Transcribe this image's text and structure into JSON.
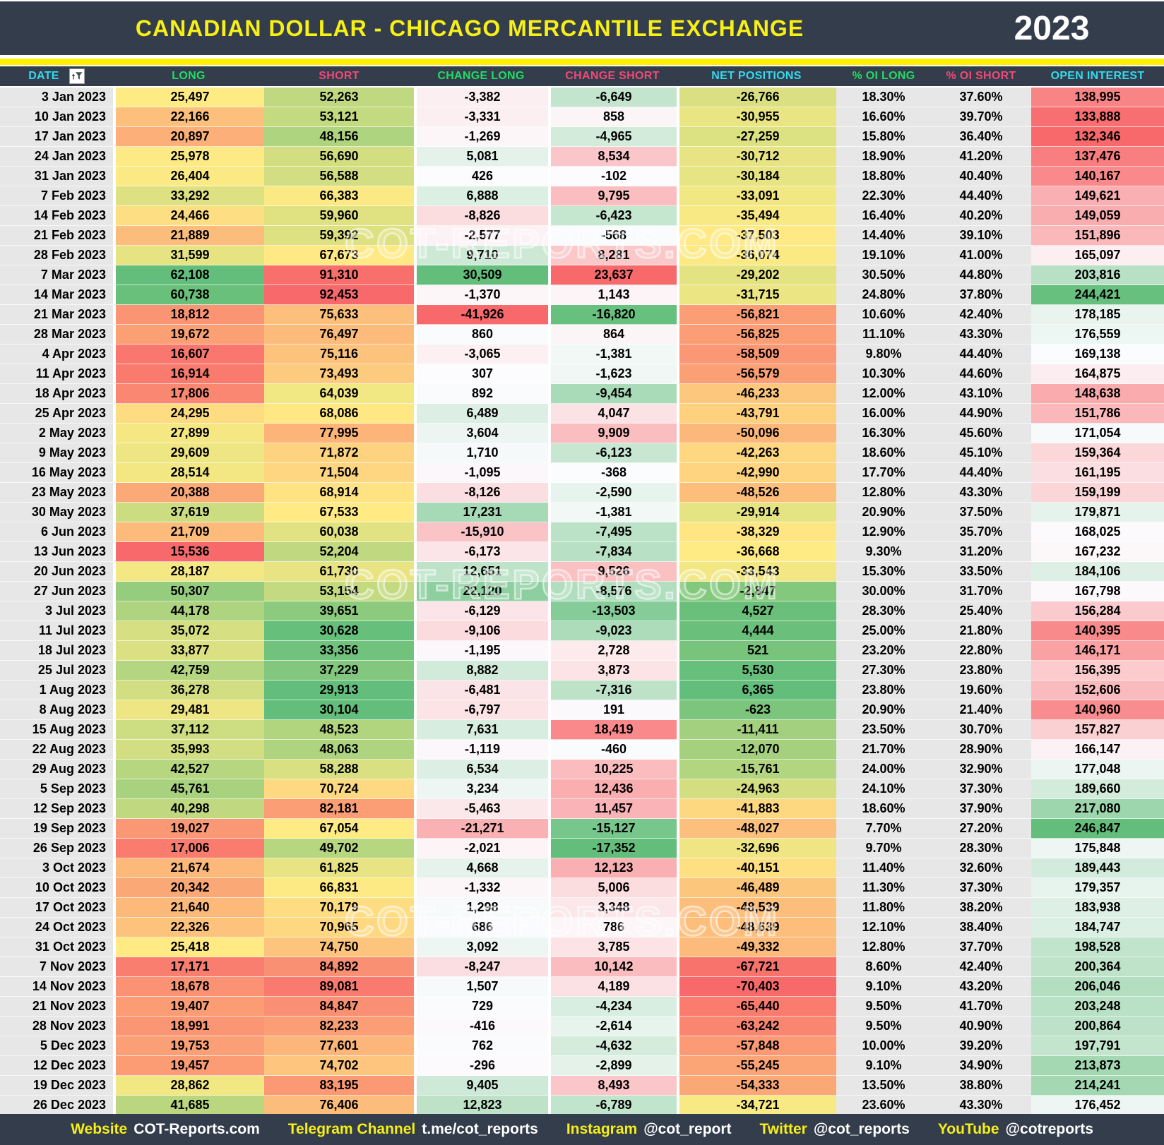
{
  "header": {
    "title": "CANADIAN DOLLAR - CHICAGO MERCANTILE EXCHANGE",
    "year": "2023"
  },
  "watermark": {
    "text": "COT-REPORTS.COM"
  },
  "colors": {
    "bar_bg": "#333D4B",
    "divider_yellow": "#FFF000",
    "title_yellow": "#F7EF16",
    "cyan": "#31DBF2",
    "green": "#1FDE63",
    "pink": "#F34876",
    "scale_red": "#F8696B",
    "scale_yellow": "#FFEB84",
    "scale_green": "#63BE7B",
    "scale_white": "#FCFCFF",
    "neutral_bg": "#E7E7E7"
  },
  "chart_data": {
    "type": "table",
    "title": "CANADIAN DOLLAR - CHICAGO MERCANTILE EXCHANGE",
    "year": "2023",
    "columns": [
      {
        "key": "date",
        "label": "DATE",
        "header_color": "cyan",
        "format": "text",
        "fill": "none"
      },
      {
        "key": "long",
        "label": "LONG",
        "header_color": "green",
        "format": "thousands",
        "fill": "red-yellow-green"
      },
      {
        "key": "short",
        "label": "SHORT",
        "header_color": "pink",
        "format": "thousands",
        "fill": "green-yellow-red"
      },
      {
        "key": "change_long",
        "label": "CHANGE LONG",
        "header_color": "green",
        "format": "thousands",
        "fill": "red-white-green"
      },
      {
        "key": "change_short",
        "label": "CHANGE SHORT",
        "header_color": "pink",
        "format": "thousands",
        "fill": "green-white-red"
      },
      {
        "key": "net_positions",
        "label": "NET POSITIONS",
        "header_color": "cyan",
        "format": "thousands",
        "fill": "red-yellow-green"
      },
      {
        "key": "pct_oi_long",
        "label": "% OI LONG",
        "header_color": "green",
        "format": "percent2",
        "fill": "none"
      },
      {
        "key": "pct_oi_short",
        "label": "% OI SHORT",
        "header_color": "pink",
        "format": "percent2",
        "fill": "none"
      },
      {
        "key": "open_interest",
        "label": "OPEN INTEREST",
        "header_color": "cyan",
        "format": "thousands",
        "fill": "red-white-green"
      }
    ],
    "rows": [
      [
        "3 Jan 2023",
        25497,
        52263,
        -3382,
        -6649,
        -26766,
        18.3,
        37.6,
        138995
      ],
      [
        "10 Jan 2023",
        22166,
        53121,
        -3331,
        858,
        -30955,
        16.6,
        39.7,
        133888
      ],
      [
        "17 Jan 2023",
        20897,
        48156,
        -1269,
        -4965,
        -27259,
        15.8,
        36.4,
        132346
      ],
      [
        "24 Jan 2023",
        25978,
        56690,
        5081,
        8534,
        -30712,
        18.9,
        41.2,
        137476
      ],
      [
        "31 Jan 2023",
        26404,
        56588,
        426,
        -102,
        -30184,
        18.8,
        40.4,
        140167
      ],
      [
        "7 Feb 2023",
        33292,
        66383,
        6888,
        9795,
        -33091,
        22.3,
        44.4,
        149621
      ],
      [
        "14 Feb 2023",
        24466,
        59960,
        -8826,
        -6423,
        -35494,
        16.4,
        40.2,
        149059
      ],
      [
        "21 Feb 2023",
        21889,
        59392,
        -2577,
        -568,
        -37503,
        14.4,
        39.1,
        151896
      ],
      [
        "28 Feb 2023",
        31599,
        67673,
        9710,
        8281,
        -36074,
        19.1,
        41.0,
        165097
      ],
      [
        "7 Mar 2023",
        62108,
        91310,
        30509,
        23637,
        -29202,
        30.5,
        44.8,
        203816
      ],
      [
        "14 Mar 2023",
        60738,
        92453,
        -1370,
        1143,
        -31715,
        24.8,
        37.8,
        244421
      ],
      [
        "21 Mar 2023",
        18812,
        75633,
        -41926,
        -16820,
        -56821,
        10.6,
        42.4,
        178185
      ],
      [
        "28 Mar 2023",
        19672,
        76497,
        860,
        864,
        -56825,
        11.1,
        43.3,
        176559
      ],
      [
        "4 Apr 2023",
        16607,
        75116,
        -3065,
        -1381,
        -58509,
        9.8,
        44.4,
        169138
      ],
      [
        "11 Apr 2023",
        16914,
        73493,
        307,
        -1623,
        -56579,
        10.3,
        44.6,
        164875
      ],
      [
        "18 Apr 2023",
        17806,
        64039,
        892,
        -9454,
        -46233,
        12.0,
        43.1,
        148638
      ],
      [
        "25 Apr 2023",
        24295,
        68086,
        6489,
        4047,
        -43791,
        16.0,
        44.9,
        151786
      ],
      [
        "2 May 2023",
        27899,
        77995,
        3604,
        9909,
        -50096,
        16.3,
        45.6,
        171054
      ],
      [
        "9 May 2023",
        29609,
        71872,
        1710,
        -6123,
        -42263,
        18.6,
        45.1,
        159364
      ],
      [
        "16 May 2023",
        28514,
        71504,
        -1095,
        -368,
        -42990,
        17.7,
        44.4,
        161195
      ],
      [
        "23 May 2023",
        20388,
        68914,
        -8126,
        -2590,
        -48526,
        12.8,
        43.3,
        159199
      ],
      [
        "30 May 2023",
        37619,
        67533,
        17231,
        -1381,
        -29914,
        20.9,
        37.5,
        179871
      ],
      [
        "6 Jun 2023",
        21709,
        60038,
        -15910,
        -7495,
        -38329,
        12.9,
        35.7,
        168025
      ],
      [
        "13 Jun 2023",
        15536,
        52204,
        -6173,
        -7834,
        -36668,
        9.3,
        31.2,
        167232
      ],
      [
        "20 Jun 2023",
        28187,
        61730,
        12651,
        9526,
        -33543,
        15.3,
        33.5,
        184106
      ],
      [
        "27 Jun 2023",
        50307,
        53154,
        22120,
        -8576,
        -2847,
        30.0,
        31.7,
        167798
      ],
      [
        "3 Jul 2023",
        44178,
        39651,
        -6129,
        -13503,
        4527,
        28.3,
        25.4,
        156284
      ],
      [
        "11 Jul 2023",
        35072,
        30628,
        -9106,
        -9023,
        4444,
        25.0,
        21.8,
        140395
      ],
      [
        "18 Jul 2023",
        33877,
        33356,
        -1195,
        2728,
        521,
        23.2,
        22.8,
        146171
      ],
      [
        "25 Jul 2023",
        42759,
        37229,
        8882,
        3873,
        5530,
        27.3,
        23.8,
        156395
      ],
      [
        "1 Aug 2023",
        36278,
        29913,
        -6481,
        -7316,
        6365,
        23.8,
        19.6,
        152606
      ],
      [
        "8 Aug 2023",
        29481,
        30104,
        -6797,
        191,
        -623,
        20.9,
        21.4,
        140960
      ],
      [
        "15 Aug 2023",
        37112,
        48523,
        7631,
        18419,
        -11411,
        23.5,
        30.7,
        157827
      ],
      [
        "22 Aug 2023",
        35993,
        48063,
        -1119,
        -460,
        -12070,
        21.7,
        28.9,
        166147
      ],
      [
        "29 Aug 2023",
        42527,
        58288,
        6534,
        10225,
        -15761,
        24.0,
        32.9,
        177048
      ],
      [
        "5 Sep 2023",
        45761,
        70724,
        3234,
        12436,
        -24963,
        24.1,
        37.3,
        189660
      ],
      [
        "12 Sep 2023",
        40298,
        82181,
        -5463,
        11457,
        -41883,
        18.6,
        37.9,
        217080
      ],
      [
        "19 Sep 2023",
        19027,
        67054,
        -21271,
        -15127,
        -48027,
        7.7,
        27.2,
        246847
      ],
      [
        "26 Sep 2023",
        17006,
        49702,
        -2021,
        -17352,
        -32696,
        9.7,
        28.3,
        175848
      ],
      [
        "3 Oct 2023",
        21674,
        61825,
        4668,
        12123,
        -40151,
        11.4,
        32.6,
        189443
      ],
      [
        "10 Oct 2023",
        20342,
        66831,
        -1332,
        5006,
        -46489,
        11.3,
        37.3,
        179357
      ],
      [
        "17 Oct 2023",
        21640,
        70179,
        1298,
        3348,
        -48539,
        11.8,
        38.2,
        183938
      ],
      [
        "24 Oct 2023",
        22326,
        70965,
        686,
        786,
        -48639,
        12.1,
        38.4,
        184747
      ],
      [
        "31 Oct 2023",
        25418,
        74750,
        3092,
        3785,
        -49332,
        12.8,
        37.7,
        198528
      ],
      [
        "7 Nov 2023",
        17171,
        84892,
        -8247,
        10142,
        -67721,
        8.6,
        42.4,
        200364
      ],
      [
        "14 Nov 2023",
        18678,
        89081,
        1507,
        4189,
        -70403,
        9.1,
        43.2,
        206046
      ],
      [
        "21 Nov 2023",
        19407,
        84847,
        729,
        -4234,
        -65440,
        9.5,
        41.7,
        203248
      ],
      [
        "28 Nov 2023",
        18991,
        82233,
        -416,
        -2614,
        -63242,
        9.5,
        40.9,
        200864
      ],
      [
        "5 Dec 2023",
        19753,
        77601,
        762,
        -4632,
        -57848,
        10.0,
        39.2,
        197791
      ],
      [
        "12 Dec 2023",
        19457,
        74702,
        -296,
        -2899,
        -55245,
        9.1,
        34.9,
        213873
      ],
      [
        "19 Dec 2023",
        28862,
        83195,
        9405,
        8493,
        -54333,
        13.5,
        38.8,
        214241
      ],
      [
        "26 Dec 2023",
        41685,
        76406,
        12823,
        -6789,
        -34721,
        23.6,
        43.3,
        176452
      ]
    ]
  },
  "footer": {
    "items": [
      {
        "label": "Website",
        "value": "COT-Reports.com"
      },
      {
        "label": "Telegram Channel",
        "value": "t.me/cot_reports"
      },
      {
        "label": "Instagram",
        "value": "@cot_report"
      },
      {
        "label": "Twitter",
        "value": "@cot_reports"
      },
      {
        "label": "YouTube",
        "value": "@cotreports"
      }
    ]
  }
}
